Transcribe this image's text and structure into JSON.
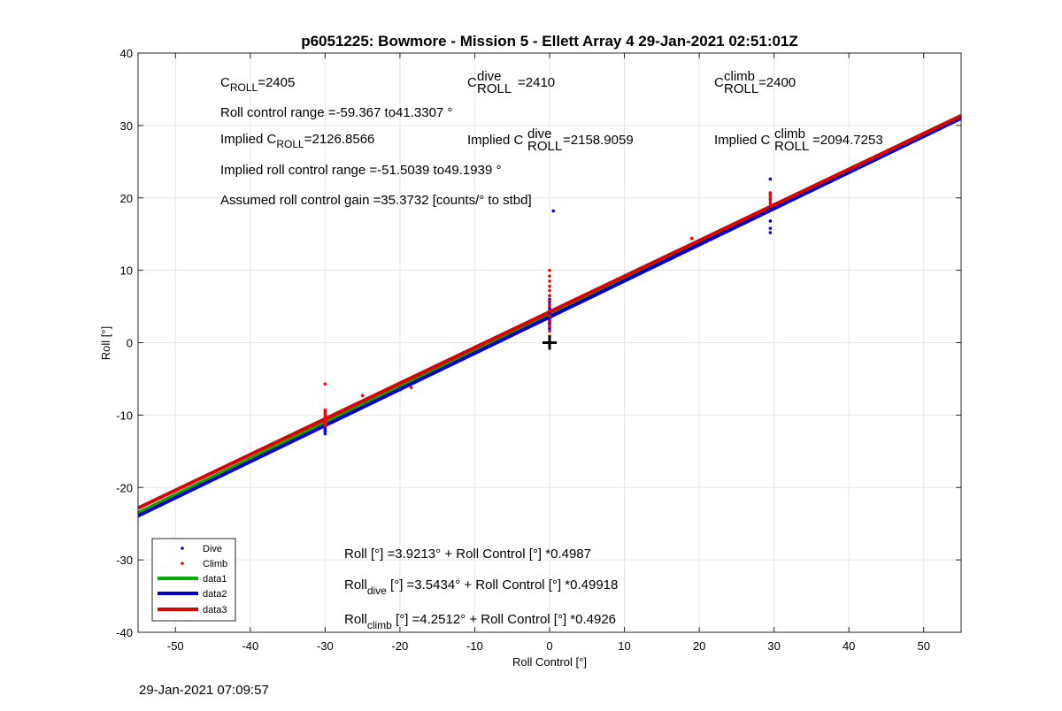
{
  "chart_data": {
    "type": "scatter",
    "title": "p6051225: Bowmore - Mission 5 - Ellett Array 4 29-Jan-2021 02:51:01Z",
    "xlabel": "Roll Control [°]",
    "ylabel": "Roll [°]",
    "xlim": [
      -55,
      55
    ],
    "ylim": [
      -40,
      40
    ],
    "xticks": [
      -50,
      -40,
      -30,
      -20,
      -10,
      0,
      10,
      20,
      30,
      40,
      50
    ],
    "yticks": [
      -40,
      -30,
      -20,
      -10,
      0,
      10,
      20,
      30,
      40
    ],
    "grid": true,
    "legend_position": "bottom-left",
    "series": [
      {
        "name": "Dive",
        "kind": "points",
        "color": "#0000ff",
        "x": [
          -30,
          -30,
          -30,
          -30,
          -30,
          -30,
          -30,
          -30,
          -30,
          -30,
          -20,
          0,
          0,
          0,
          0,
          0,
          0,
          0,
          0,
          0,
          0,
          0,
          0,
          0,
          0,
          0,
          0,
          0,
          0.5,
          29.5,
          29.5,
          29.5,
          29.5,
          29.5,
          29.5,
          29.5
        ],
        "y": [
          -10.5,
          -11,
          -11.3,
          -11.6,
          -11.9,
          -12.1,
          -12.3,
          -12.6,
          -10.8,
          -11.2,
          -6.5,
          2.2,
          2.6,
          3.0,
          3.3,
          3.5,
          3.8,
          4.1,
          4.4,
          4.8,
          5.2,
          5.6,
          6.0,
          6.5,
          1.9,
          3.1,
          4.6,
          2.8,
          18.2,
          15.2,
          15.8,
          16.8,
          18.6,
          19.8,
          20.6,
          22.6
        ]
      },
      {
        "name": "Climb",
        "kind": "points",
        "color": "#ff0000",
        "x": [
          -30,
          -30,
          -30,
          -30,
          -30,
          -30,
          -30,
          -30,
          -30,
          -25,
          -18.5,
          0,
          0,
          0,
          0,
          0,
          0,
          0,
          0,
          0,
          0,
          0,
          0,
          0,
          0,
          19,
          29.5,
          29.5,
          29.5,
          29.5,
          29.5,
          29.5
        ],
        "y": [
          -5.7,
          -9.3,
          -9.6,
          -9.9,
          -10.2,
          -10.5,
          -10.8,
          -11.1,
          -11.4,
          -7.3,
          -6.2,
          10.0,
          9.2,
          8.5,
          7.8,
          7.2,
          6.5,
          5.8,
          5.1,
          4.4,
          3.7,
          3.0,
          2.3,
          1.6,
          0.9,
          14.4,
          18.9,
          19.3,
          19.7,
          20.1,
          20.4,
          20.7
        ]
      },
      {
        "name": "data1",
        "kind": "line",
        "color": "#00aa00",
        "intercept": 3.9213,
        "slope": 0.4987
      },
      {
        "name": "data2",
        "kind": "line",
        "color": "#0000cc",
        "intercept": 3.5434,
        "slope": 0.49918
      },
      {
        "name": "data3",
        "kind": "line",
        "color": "#dd0000",
        "intercept": 4.2512,
        "slope": 0.4926
      }
    ],
    "marker": {
      "type": "plus",
      "x": 0,
      "y": 0,
      "color": "#000000"
    },
    "annotations": {
      "c_roll": {
        "base": "C",
        "sub": "ROLL",
        "sup": "",
        "value": "=2405"
      },
      "c_roll_dive": {
        "base": "C",
        "sub": "ROLL",
        "sup": "dive",
        "value": "=2410"
      },
      "c_roll_climb": {
        "base": "C",
        "sub": "ROLL",
        "sup": "climb",
        "value": "=2400"
      },
      "roll_range": "Roll control range =-59.367 to41.3307 °",
      "implied_c_roll": {
        "prefix": "Implied C",
        "sub": "ROLL",
        "value": "=2126.8566"
      },
      "implied_c_roll_dive": {
        "prefix": "Implied C",
        "sub": "ROLL",
        "sup": "dive",
        "value": "=2158.9059"
      },
      "implied_c_roll_climb": {
        "prefix": "Implied C",
        "sub": "ROLL",
        "sup": "climb",
        "value": "=2094.7253"
      },
      "implied_range": "Implied roll control range =-51.5039 to49.1939 °",
      "gain": "Assumed roll control gain =35.3732 [counts/° to stbd]",
      "fit_all": "Roll [°] =3.9213° + Roll Control [°] *0.4987",
      "fit_dive": {
        "base": "Roll",
        "sub": "dive",
        "rest": " [°] =3.5434° + Roll Control [°] *0.49918"
      },
      "fit_climb": {
        "base": "Roll",
        "sub": "climb",
        "rest": " [°] =4.2512° + Roll Control [°] *0.4926"
      }
    }
  },
  "footer": {
    "timestamp": "29-Jan-2021 07:09:57"
  }
}
